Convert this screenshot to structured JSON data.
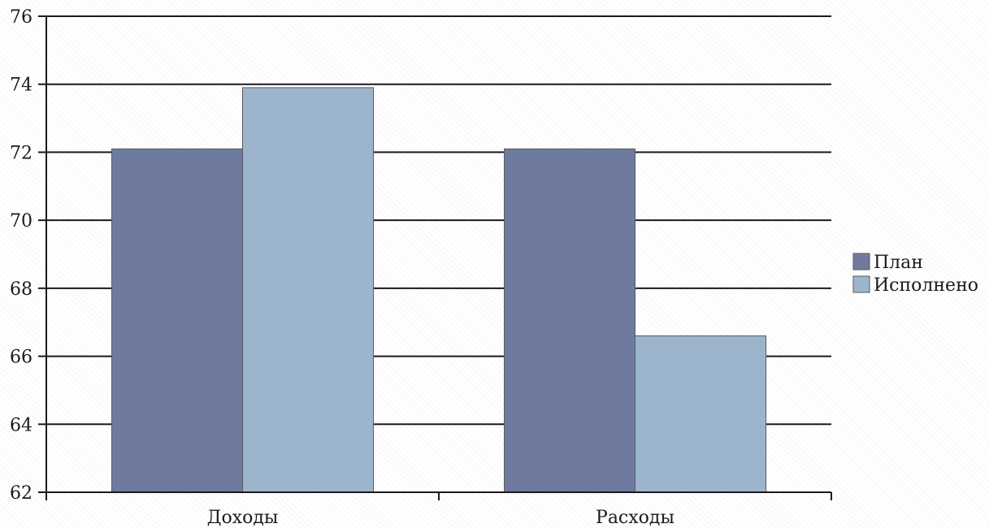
{
  "chart_data": {
    "type": "bar",
    "categories": [
      "Доходы",
      "Расходы"
    ],
    "series": [
      {
        "name": "План",
        "values": [
          72.1,
          72.1
        ],
        "color": "#6f7a9f"
      },
      {
        "name": "Исполнено",
        "values": [
          73.9,
          66.6
        ],
        "color": "#9db5cc"
      }
    ],
    "ylim": [
      62,
      76
    ],
    "yticks": [
      "62",
      "64",
      "66",
      "68",
      "70",
      "72",
      "74",
      "76"
    ],
    "grid": true,
    "legend_position": "right",
    "title": "",
    "xlabel": "",
    "ylabel": ""
  }
}
